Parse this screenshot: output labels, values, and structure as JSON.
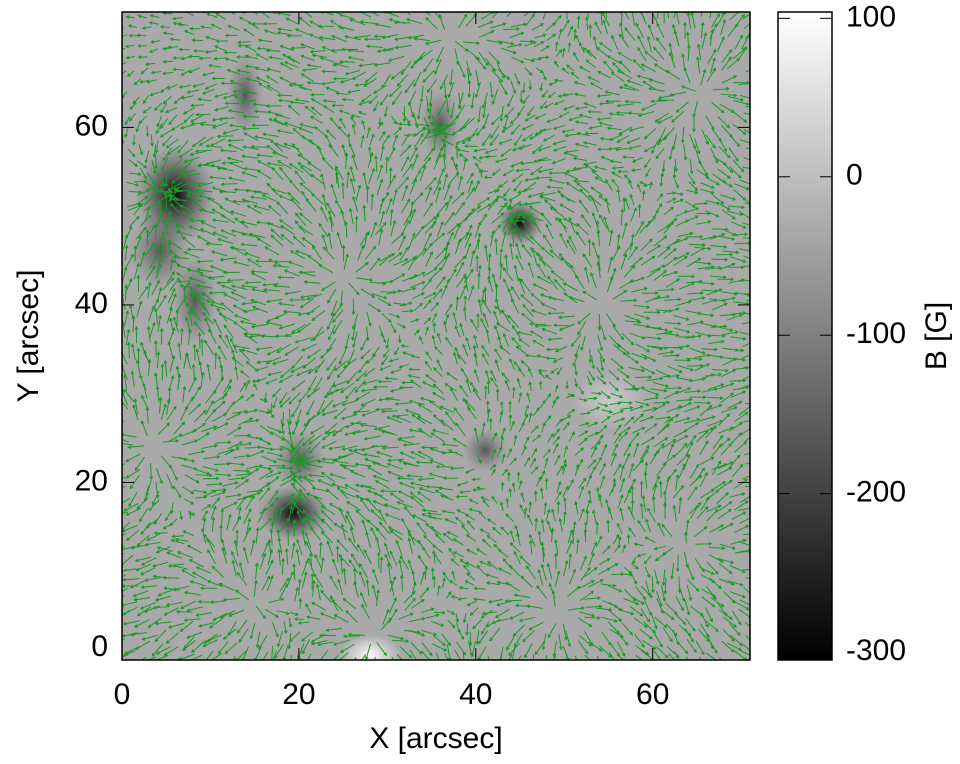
{
  "chart_data": {
    "type": "heatmap",
    "x_label": "X [arcsec]",
    "y_label": "Y [arcsec]",
    "xlim": [
      0,
      71
    ],
    "xticks": [
      0,
      20,
      40,
      60
    ],
    "ylim": [
      0,
      73
    ],
    "yticks": [
      0,
      20,
      40,
      60
    ],
    "colorbar": {
      "label": "B [G]",
      "lim": [
        -305,
        104
      ],
      "ticks": [
        100,
        0,
        -100,
        -200,
        -300
      ]
    },
    "arrow_color": "#1b9a26"
  }
}
